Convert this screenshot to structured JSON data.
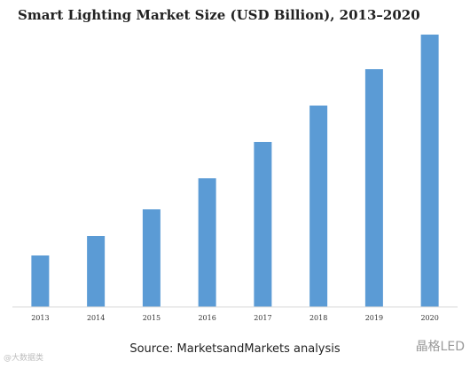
{
  "chart_data": {
    "type": "bar",
    "title": "Smart Lighting Market Size (USD Billion), 2013–2020",
    "categories": [
      "2013",
      "2014",
      "2015",
      "2016",
      "2017",
      "2018",
      "2019",
      "2020"
    ],
    "values": [
      5.8,
      8.0,
      11.0,
      14.5,
      18.6,
      22.7,
      26.8,
      30.7
    ],
    "ylim": [
      0,
      33
    ],
    "xlabel": "",
    "ylabel": "",
    "grid": false,
    "legend": "none",
    "bar_color": "#5b9bd5",
    "source": "Source: MarketsandMarkets analysis"
  },
  "watermarks": {
    "left": "@大数据类",
    "right": "晶格LED"
  },
  "colors": {
    "bar": "#5b9bd5",
    "axis": "#d9d9d9",
    "text": "#222222"
  }
}
